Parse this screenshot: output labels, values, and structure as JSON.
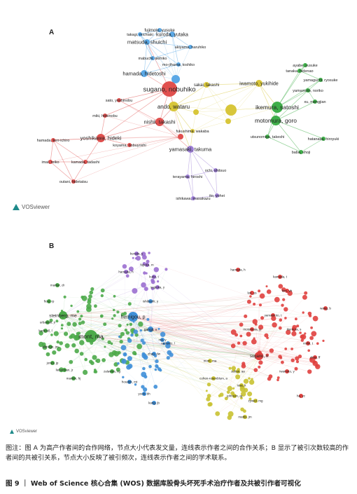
{
  "panel_a": {
    "letter": "A",
    "vos_logo": "VOSviewer",
    "colors": {
      "blue": "#5aa8e6",
      "red": "#e0504e",
      "yellow": "#d8c63a",
      "green": "#3fae49",
      "purple": "#9d7fd6"
    },
    "authors": [
      {
        "name": "fujimoto, yusuke",
        "cluster": "blue"
      },
      {
        "name": "takagi, michiaki",
        "cluster": "blue"
      },
      {
        "name": "kuroda, yutaka",
        "cluster": "blue"
      },
      {
        "name": "matsuda, shuichi",
        "cluster": "blue"
      },
      {
        "name": "akiyama, haruhiko",
        "cluster": "blue"
      },
      {
        "name": "mabuchi, akihiko",
        "cluster": "blue"
      },
      {
        "name": "mo-jihama, toshiko",
        "cluster": "blue"
      },
      {
        "name": "hamada, hidetoshi",
        "cluster": "blue"
      },
      {
        "name": "sugano, nobuhiko",
        "cluster": "red"
      },
      {
        "name": "sato, yoshinobu",
        "cluster": "red"
      },
      {
        "name": "miki, hidenobu",
        "cluster": "red"
      },
      {
        "name": "nishii, takashi",
        "cluster": "red"
      },
      {
        "name": "yoshikawa, hideki",
        "cluster": "red"
      },
      {
        "name": "koyama, nobuyoshi",
        "cluster": "red"
      },
      {
        "name": "hamada, ken-ichiro",
        "cluster": "red"
      },
      {
        "name": "imai, reiko",
        "cluster": "red"
      },
      {
        "name": "kamada, tadashi",
        "cluster": "red"
      },
      {
        "name": "outani, hidetatsu",
        "cluster": "red"
      },
      {
        "name": "sakai, takashi",
        "cluster": "yellow"
      },
      {
        "name": "ando, wataru",
        "cluster": "yellow"
      },
      {
        "name": "iwamoto, yukihide",
        "cluster": "yellow"
      },
      {
        "name": "fukushima, wakaba",
        "cluster": "yellow"
      },
      {
        "name": "ayabe, yusuke",
        "cluster": "green"
      },
      {
        "name": "tanaka, hidenao",
        "cluster": "green"
      },
      {
        "name": "yamaguchi, ryosuke",
        "cluster": "green"
      },
      {
        "name": "yamamoto, noriko",
        "cluster": "green"
      },
      {
        "name": "xu, mengjian",
        "cluster": "green"
      },
      {
        "name": "ikemura, satoshi",
        "cluster": "green"
      },
      {
        "name": "motomura, goro",
        "cluster": "green"
      },
      {
        "name": "utsunomiya, takeshi",
        "cluster": "green"
      },
      {
        "name": "hatanaka, hiroyuki",
        "cluster": "green"
      },
      {
        "name": "baba, shoji",
        "cluster": "green"
      },
      {
        "name": "yamasaki, takuma",
        "cluster": "purple"
      },
      {
        "name": "ochi, shitsuo",
        "cluster": "purple"
      },
      {
        "name": "terayama, hiroshi",
        "cluster": "purple"
      },
      {
        "name": "ito, yohei",
        "cluster": "purple"
      },
      {
        "name": "ishikawa, masakazu",
        "cluster": "purple"
      }
    ]
  },
  "panel_b": {
    "letter": "B",
    "vos_logo": "VOSviewer",
    "colors": {
      "green": "#4caa4a",
      "blue": "#3f8fd8",
      "purple": "#9b6fd0",
      "red": "#e0413f",
      "yellow": "#c9c232"
    },
    "authors": [
      {
        "name": "hernigou, p",
        "cluster": "blue"
      },
      {
        "name": "mont, ma",
        "cluster": "green"
      },
      {
        "name": "steinberg, me",
        "cluster": "green"
      },
      {
        "name": "urbaniak, jr",
        "cluster": "green"
      },
      {
        "name": "kerboull, l",
        "cluster": "green"
      },
      {
        "name": "aldridge, jm",
        "cluster": "green"
      },
      {
        "name": "ficat, rp",
        "cluster": "green"
      },
      {
        "name": "jones, jp",
        "cluster": "green"
      },
      {
        "name": "lieberman, jr",
        "cluster": "green"
      },
      {
        "name": "marker, dr",
        "cluster": "green"
      },
      {
        "name": "mankin, hj",
        "cluster": "green"
      },
      {
        "name": "zalavras, cg",
        "cluster": "green"
      },
      {
        "name": "gangji, v",
        "cluster": "blue"
      },
      {
        "name": "rackwitz, l",
        "cluster": "blue"
      },
      {
        "name": "zhao, dw",
        "cluster": "blue"
      },
      {
        "name": "houdek, mt",
        "cluster": "blue"
      },
      {
        "name": "yoon, bh",
        "cluster": "blue"
      },
      {
        "name": "kang, jb",
        "cluster": "blue"
      },
      {
        "name": "ma, y",
        "cluster": "blue"
      },
      {
        "name": "ishibashi, y",
        "cluster": "blue"
      },
      {
        "name": "kuroda, y",
        "cluster": "purple"
      },
      {
        "name": "fujioka, m",
        "cluster": "purple"
      },
      {
        "name": "kubo, t",
        "cluster": "purple"
      },
      {
        "name": "hamada, h",
        "cluster": "purple"
      },
      {
        "name": "sugioka, y",
        "cluster": "purple"
      },
      {
        "name": "sugano, n",
        "cluster": "red"
      },
      {
        "name": "motomura, g",
        "cluster": "red"
      },
      {
        "name": "yamamoto, t",
        "cluster": "red"
      },
      {
        "name": "ikemura, s",
        "cluster": "red"
      },
      {
        "name": "nishii, t",
        "cluster": "red"
      },
      {
        "name": "zhao, ff",
        "cluster": "red"
      },
      {
        "name": "iwamoto, y",
        "cluster": "red"
      },
      {
        "name": "kamada, t",
        "cluster": "red"
      },
      {
        "name": "lee, ys",
        "cluster": "red"
      },
      {
        "name": "wang, b",
        "cluster": "red"
      },
      {
        "name": "hamada, h",
        "cluster": "red"
      },
      {
        "name": "kim, yh",
        "cluster": "red"
      },
      {
        "name": "ha, yc",
        "cluster": "red"
      },
      {
        "name": "cohen-rosenblum, a",
        "cluster": "yellow"
      },
      {
        "name": "sultan, aa",
        "cluster": "yellow"
      },
      {
        "name": "mont, ma",
        "cluster": "yellow"
      },
      {
        "name": "johnson, aj",
        "cluster": "yellow"
      },
      {
        "name": "issa, k",
        "cluster": "yellow"
      },
      {
        "name": "mattis, jm",
        "cluster": "yellow"
      },
      {
        "name": "zywiel, mg",
        "cluster": "yellow"
      }
    ]
  },
  "caption": "图注：图 A 为高产作者间的合作网络，节点大小代表发文量，连线表示作者之间的合作关系；B 显示了被引次数较高的作者间的共被引关系，节点大小反映了被引频次，连线表示作者之间的学术联系。",
  "figure_title": "图 9 ｜ Web of Science 核心合集 (WOS) 数据库股骨头坏死手术治疗作者及共被引作者可视化"
}
